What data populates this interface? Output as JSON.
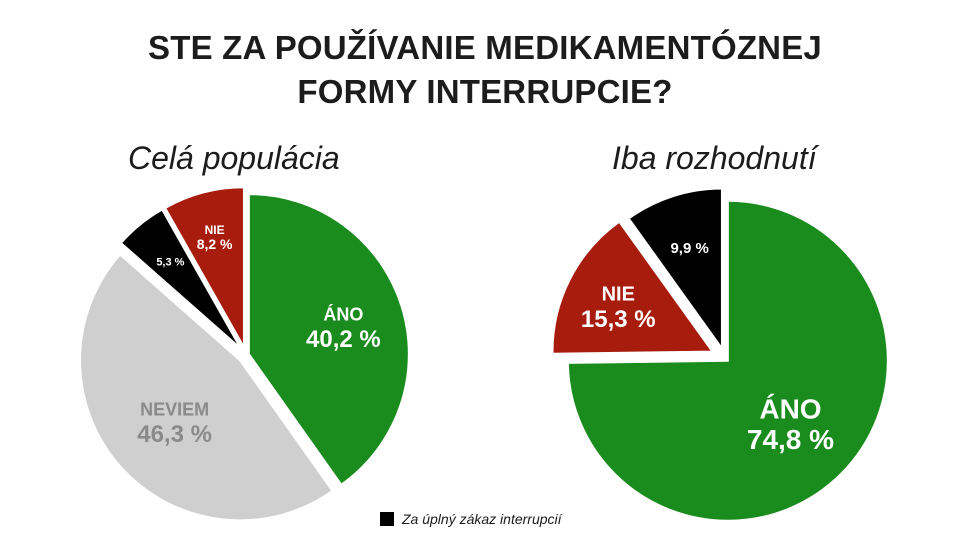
{
  "title_lines": [
    "STE ZA POUŽÍVANIE MEDIKAMENTÓZNEJ",
    "FORMY INTERRUPCIE?"
  ],
  "legend": {
    "label": "Za úplný zákaz interrupcií",
    "color": "#000000"
  },
  "chart_data": [
    {
      "type": "pie",
      "title": "Celá populácia",
      "slices": [
        {
          "label": "ÁNO",
          "value": 40.2,
          "value_text": "40,2 %",
          "color": "#1a8b1d"
        },
        {
          "label": "NEVIEM",
          "value": 46.3,
          "value_text": "46,3 %",
          "color": "#cfcfcf"
        },
        {
          "label": "",
          "value": 5.3,
          "value_text": "5,3 %",
          "color": "#000000"
        },
        {
          "label": "NIE",
          "value": 8.2,
          "value_text": "8,2 %",
          "color": "#a81c0d"
        }
      ]
    },
    {
      "type": "pie",
      "title": "Iba rozhodnutí",
      "slices": [
        {
          "label": "ÁNO",
          "value": 74.8,
          "value_text": "74,8 %",
          "color": "#1a8b1d"
        },
        {
          "label": "NIE",
          "value": 15.3,
          "value_text": "15,3 %",
          "color": "#a81c0d"
        },
        {
          "label": "",
          "value": 9.9,
          "value_text": "9,9 %",
          "color": "#000000"
        }
      ]
    }
  ]
}
